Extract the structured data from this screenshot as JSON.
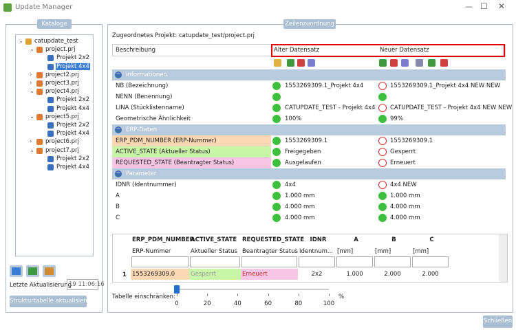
{
  "window": {
    "title": "Update Manager"
  },
  "catalog": {
    "title": "Kataloge",
    "tree": {
      "label": "catupdate_test",
      "children": [
        {
          "label": "project.prj",
          "expanded": true,
          "children": [
            {
              "label": "Projekt 2x2"
            },
            {
              "label": "Projekt 4x4",
              "selected": true
            }
          ]
        },
        {
          "label": "project2.prj",
          "expanded": false
        },
        {
          "label": "project3.prj",
          "expanded": false
        },
        {
          "label": "project4.prj",
          "expanded": true,
          "children": [
            {
              "label": "Projekt 2x2"
            },
            {
              "label": "Projekt 4x4"
            }
          ]
        },
        {
          "label": "project5.prj",
          "expanded": true,
          "children": [
            {
              "label": "Projekt 2x2"
            },
            {
              "label": "Projekt 4x4"
            }
          ]
        },
        {
          "label": "project6.prj",
          "expanded": false
        },
        {
          "label": "project7.prj",
          "expanded": true,
          "children": [
            {
              "label": "Projekt 2x2"
            },
            {
              "label": "Projekt 4x4"
            }
          ]
        }
      ]
    },
    "last_update_label": "Letzte Aktualisierung",
    "last_update_value": "19 11:06:16",
    "refresh_button": "Strukturtabelle aktualisieren"
  },
  "mapping": {
    "title": "Zeilenzuordnung",
    "project": "Zugeordnetes Projekt: catupdate_test/project.prj",
    "headers": [
      "Beschreibung",
      "Alter Datensatz",
      "Neuer Datensatz"
    ],
    "sections": [
      {
        "title": "Informationen",
        "rows": [
          {
            "label": "NB (Bezeichnung)",
            "old": "1553269309.1_Projekt 4x4",
            "new": "1553269309.1_Projekt 4x4 NEW NEW",
            "changed": true
          },
          {
            "label": "NENN (Benennung)",
            "old": null,
            "new": null,
            "changed": false
          },
          {
            "label": "LINA (Stücklistenname)",
            "old": "CATUPDATE_TEST - Projekt 4x4",
            "new": "CATUPDATE_TEST - Projekt 4x4 NEW NEW",
            "changed": true
          },
          {
            "label": "Geometrische Ähnlichkeit",
            "old": "100%",
            "new": "99%",
            "changed": false
          }
        ]
      },
      {
        "title": "ERP-Daten",
        "rows": [
          {
            "label": "ERP_PDM_NUMBER (ERP-Nummer)",
            "old": "1553269309.1",
            "new": "1553269309.1",
            "changed": true,
            "color": "#fbd7b3"
          },
          {
            "label": "ACTIVE_STATE (Aktueller Status)",
            "old": "Freigegeben",
            "new": "Gesperrt",
            "changed": true,
            "color": "#c8f5a8"
          },
          {
            "label": "REQUESTED_STATE (Beantragter Status)",
            "old": "Ausgelaufen",
            "new": "Erneuert",
            "changed": true,
            "color": "#f7c6e4"
          }
        ]
      },
      {
        "title": "Parameter",
        "rows": [
          {
            "label": "IDNR (Identnummer)",
            "old": "4x4",
            "new": "4x4 NEW",
            "changed": true
          },
          {
            "label": "A",
            "old": "1.000 mm",
            "new": "1.000 mm",
            "changed": false
          },
          {
            "label": "B",
            "old": "4.000 mm",
            "new": "4.000 mm",
            "changed": false
          },
          {
            "label": "C",
            "old": "4.000 mm",
            "new": "4.000 mm",
            "changed": false
          }
        ]
      }
    ]
  },
  "table": {
    "columns": [
      {
        "name": "ERP_PDM_NUMBER",
        "sub": "ERP-Nummer"
      },
      {
        "name": "ACTIVE_STATE",
        "sub": "Aktueller Status"
      },
      {
        "name": "REQUESTED_STATE",
        "sub": "Beantragter Status"
      },
      {
        "name": "IDNR",
        "sub": "Identnum..."
      },
      {
        "name": "A",
        "sub": "[mm]"
      },
      {
        "name": "B",
        "sub": "[mm]"
      },
      {
        "name": "C",
        "sub": "[mm]"
      }
    ],
    "rows": [
      {
        "number": 1,
        "cells": [
          "1553269309.0",
          "Gesperrt",
          "Erneuert",
          "2x2",
          "1.000",
          "2.000",
          "2.000"
        ]
      }
    ]
  },
  "slider": {
    "label": "Tabelle einschränken:",
    "ticks": [
      0,
      20,
      40,
      60,
      80,
      100
    ],
    "unit": "%",
    "value": 0
  },
  "close_button": "Schließen"
}
